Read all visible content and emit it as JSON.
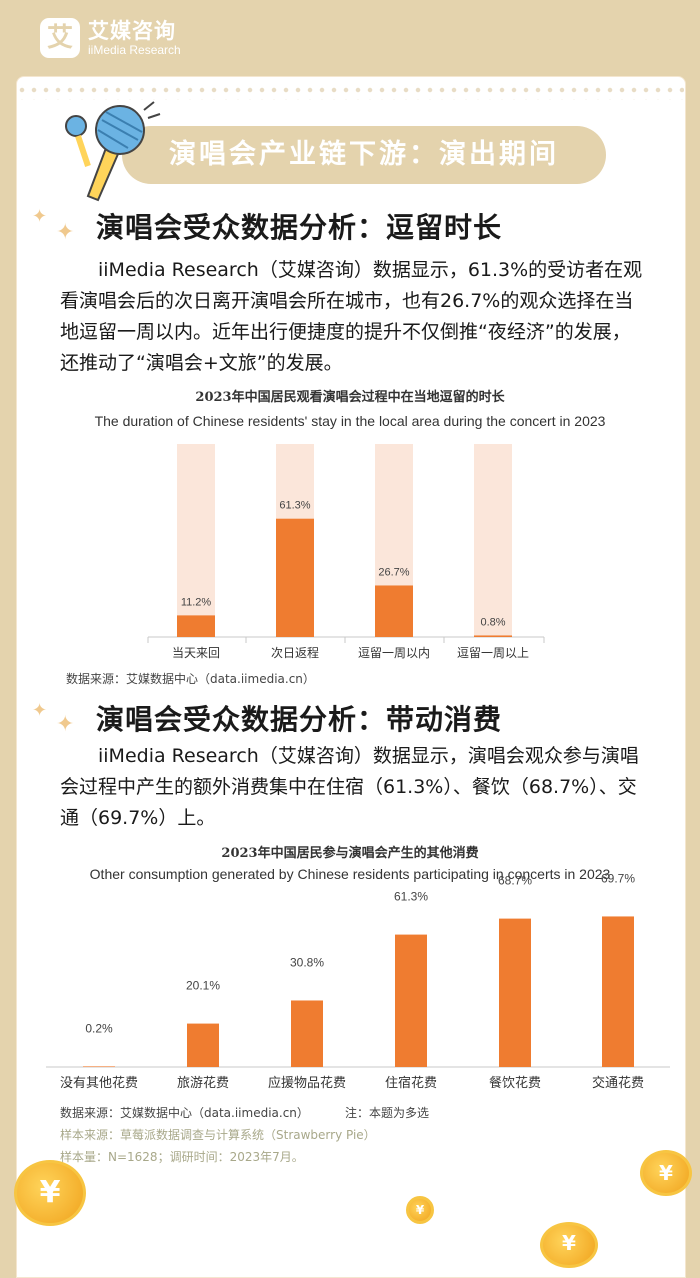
{
  "brand": {
    "mark": "艾",
    "name_cn": "艾媒咨询",
    "name_en": "iiMedia Research"
  },
  "banner": "演唱会产业链下游：演出期间",
  "sections": [
    {
      "heading": "演唱会受众数据分析：逗留时长",
      "paragraph": "iiMedia Research（艾媒咨询）数据显示，61.3%的受访者在观看演唱会后的次日离开演唱会所在城市，也有26.7%的观众选择在当地逗留一周以内。近年出行便捷度的提升不仅倒推“夜经济”的发展，还推动了“演唱会+文旅”的发展。"
    },
    {
      "heading": "演唱会受众数据分析：带动消费",
      "paragraph": "iiMedia Research（艾媒咨询）数据显示，演唱会观众参与演唱会过程中产生的额外消费集中在住宿（61.3%）、餐饮（68.7%）、交通（69.7%）上。"
    }
  ],
  "chart_data": [
    {
      "type": "bar",
      "title": "2023年中国居民观看演唱会过程中在当地逗留的时长",
      "subtitle": "The duration of Chinese residents' stay in the local area during the concert in 2023",
      "categories": [
        "当天来回",
        "次日返程",
        "逗留一周以内",
        "逗留一周以上"
      ],
      "values": [
        11.2,
        61.3,
        26.7,
        0.8
      ],
      "data_labels": [
        "11.2%",
        "61.3%",
        "26.7%",
        "0.8%"
      ],
      "ylim": [
        0,
        100
      ],
      "bar_color": "#ef7c30",
      "track_color": "#fbe6da",
      "source": "数据来源：艾媒数据中心（data.iimedia.cn）"
    },
    {
      "type": "bar",
      "title": "2023年中国居民参与演唱会产生的其他消费",
      "subtitle": "Other consumption generated by Chinese residents participating in concerts in 2023",
      "categories": [
        "没有其他花费",
        "旅游花费",
        "应援物品花费",
        "住宿花费",
        "餐饮花费",
        "交通花费"
      ],
      "values": [
        0.2,
        20.1,
        30.8,
        61.3,
        68.7,
        69.7
      ],
      "data_labels": [
        "0.2%",
        "20.1%",
        "30.8%",
        "61.3%",
        "68.7%",
        "69.7%"
      ],
      "ylim": [
        0,
        75
      ],
      "bar_color": "#ef7c30",
      "source": "数据来源：艾媒数据中心（data.iimedia.cn）",
      "note": "注：本题为多选",
      "sample_source": "样本来源：草莓派数据调查与计算系统（Strawberry Pie）",
      "sample_info": "样本量：N=1628；调研时间：2023年7月。"
    }
  ],
  "coin_symbol": "¥",
  "colors": {
    "background": "#e4d3ad",
    "accent": "#ef7c30",
    "card": "#ffffff"
  }
}
